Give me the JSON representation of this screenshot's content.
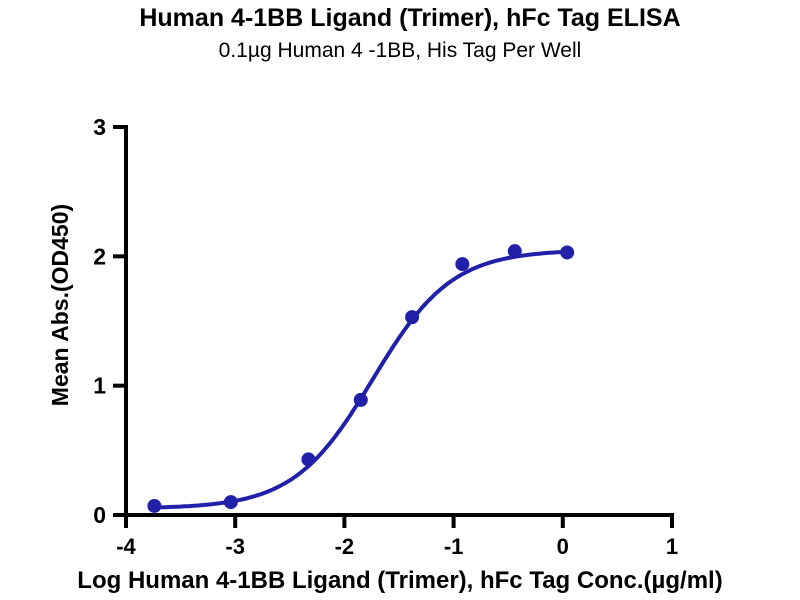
{
  "header": {
    "title": "Human 4-1BB Ligand (Trimer), hFc Tag ELISA",
    "subtitle": "0.1µg Human 4 -1BB, His Tag Per Well"
  },
  "chart_data": {
    "type": "scatter",
    "title": "Human 4-1BB Ligand (Trimer), hFc Tag ELISA",
    "subtitle": "0.1µg Human 4 -1BB, His Tag Per Well",
    "xlabel": "Log Human 4-1BB Ligand (Trimer), hFc Tag Conc.(µg/ml)",
    "ylabel": "Mean Abs.(OD450)",
    "x": [
      -3.74,
      -3.04,
      -2.33,
      -1.85,
      -1.38,
      -0.92,
      -0.44,
      0.04
    ],
    "y": [
      0.07,
      0.1,
      0.43,
      0.89,
      1.53,
      1.94,
      2.04,
      2.03
    ],
    "xlim": [
      -4,
      1
    ],
    "ylim": [
      0,
      3
    ],
    "xticks": [
      -4,
      -3,
      -2,
      -1,
      0,
      1
    ],
    "yticks": [
      0,
      1,
      2,
      3
    ],
    "curve_fit": {
      "model": "4PL",
      "bottom": 0.05,
      "top": 2.05,
      "logEC50": -1.74,
      "hill": 1.2
    },
    "series_color": "#2020a8",
    "axis_color": "#000000",
    "grid": false,
    "legend": "none"
  }
}
